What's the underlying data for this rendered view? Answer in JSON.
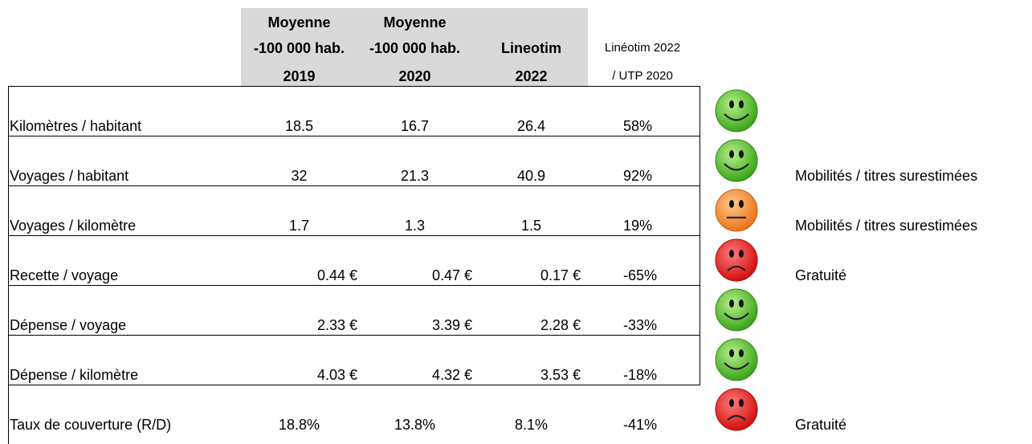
{
  "header": {
    "columns": [
      {
        "lines": [
          "Moyenne",
          "-100 000 hab.",
          "2019"
        ]
      },
      {
        "lines": [
          "Moyenne",
          "-100 000 hab.",
          "2020"
        ]
      },
      {
        "lines": [
          "Lineotim",
          "2022"
        ]
      },
      {
        "lines": [
          "Linéotim 2022",
          "/ UTP 2020"
        ]
      }
    ]
  },
  "table": {
    "rows": [
      {
        "label": "Kilomètres / habitant",
        "values": [
          "18.5",
          "16.7",
          "26.4",
          "58%"
        ]
      },
      {
        "label": "Voyages / habitant",
        "values": [
          "32",
          "21.3",
          "40.9",
          "92%"
        ],
        "note": "Mobilités / titres surestimées"
      },
      {
        "label": "Voyages / kilomètre",
        "values": [
          "1.7",
          "1.3",
          "1.5",
          "19%"
        ],
        "note": "Mobilités / titres surestimées"
      },
      {
        "label": "Recette / voyage",
        "values": [
          "0.44 €",
          "0.47 €",
          "0.17 €",
          "-65%"
        ],
        "note": "Gratuité"
      },
      {
        "label": "Dépense / voyage",
        "values": [
          "2.33 €",
          "3.39 €",
          "2.28 €",
          "-33%"
        ]
      },
      {
        "label": "Dépense / kilomètre",
        "values": [
          "4.03 €",
          "4.32 €",
          "3.53 €",
          "-18%"
        ]
      },
      {
        "label": "Taux de couverture (R/D)",
        "values": [
          "18.8%",
          "13.8%",
          "8.1%",
          "-41%"
        ],
        "note": "Gratuité"
      }
    ]
  }
}
